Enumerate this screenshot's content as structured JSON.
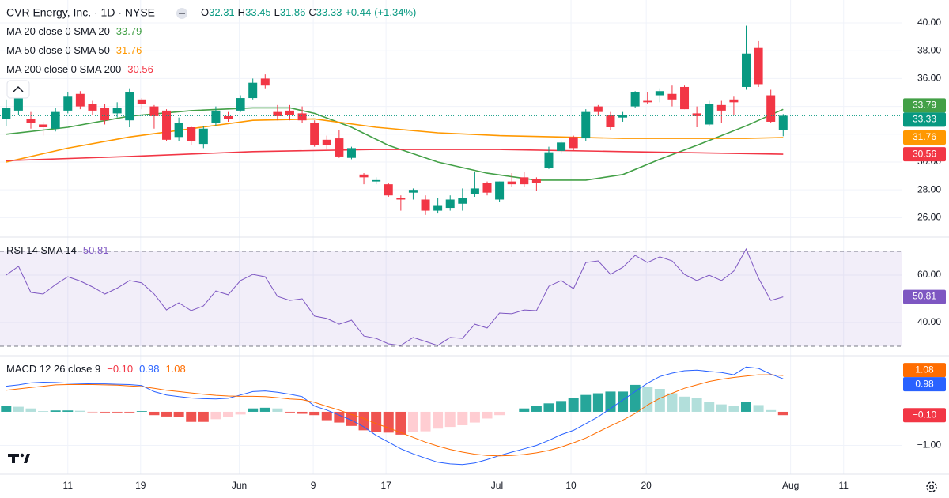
{
  "chart_data": [
    {
      "type": "candlestick",
      "title": "CVR Energy, Inc. · 1D · NYSE",
      "ohlc_labels": [
        "O",
        "H",
        "L",
        "C"
      ],
      "change": {
        "value": 0.44,
        "label": "+0.44"
      },
      "change_pct": {
        "value": 1.34,
        "label": "(+1.34%)"
      },
      "up_color": "#089981",
      "down_color": "#f23645",
      "open": [
        33.1,
        33.7,
        33.1,
        32.7,
        32.4,
        33.7,
        34.9,
        34.2,
        33.9,
        33.5,
        33.0,
        34.5,
        34.0,
        33.7,
        31.8,
        32.5,
        31.3,
        32.8,
        33.3,
        33.7,
        34.6,
        36.0,
        33.6,
        33.7,
        33.5,
        32.8,
        31.6,
        31.7,
        30.3,
        29.1,
        28.6,
        28.4,
        27.4,
        27.8,
        27.3,
        26.5,
        26.7,
        27.0,
        27.7,
        28.5,
        27.3,
        28.6,
        28.9,
        28.8,
        29.6,
        30.8,
        31.8,
        31.7,
        34.0,
        33.4,
        33.2,
        34.0,
        34.4,
        34.8,
        34.9,
        35.4,
        33.5,
        32.7,
        34.1,
        34.5,
        35.4,
        38.2,
        34.8,
        32.31
      ],
      "high": [
        34.5,
        35.0,
        33.6,
        32.9,
        33.9,
        35.0,
        35.1,
        34.4,
        34.2,
        34.3,
        35.3,
        34.6,
        34.1,
        33.8,
        33.2,
        32.6,
        32.6,
        34.0,
        33.6,
        34.8,
        36.0,
        36.3,
        34.1,
        34.1,
        34.0,
        33.0,
        31.9,
        32.3,
        31.1,
        29.2,
        28.9,
        28.5,
        27.6,
        28.1,
        27.6,
        27.4,
        27.6,
        28.1,
        29.3,
        28.6,
        28.6,
        29.2,
        29.3,
        28.9,
        31.1,
        31.5,
        31.9,
        33.8,
        34.1,
        33.6,
        33.6,
        35.1,
        35.0,
        35.3,
        35.5,
        35.5,
        34.0,
        34.4,
        34.4,
        34.7,
        39.8,
        38.7,
        35.2,
        33.45
      ],
      "low": [
        32.6,
        33.4,
        32.4,
        31.9,
        32.2,
        33.5,
        33.8,
        33.4,
        32.7,
        33.2,
        32.5,
        33.8,
        32.4,
        31.5,
        31.5,
        31.2,
        31.0,
        32.6,
        32.9,
        33.6,
        34.5,
        35.3,
        33.0,
        33.0,
        32.8,
        31.1,
        30.9,
        30.3,
        30.2,
        28.4,
        28.4,
        27.5,
        26.5,
        27.3,
        26.2,
        26.3,
        26.5,
        26.5,
        27.5,
        27.6,
        27.1,
        28.2,
        28.2,
        27.9,
        29.5,
        30.6,
        30.8,
        31.5,
        33.3,
        32.3,
        32.9,
        33.9,
        34.2,
        34.3,
        34.0,
        33.8,
        32.5,
        32.6,
        32.8,
        33.4,
        35.2,
        35.4,
        32.8,
        31.86
      ],
      "close": [
        33.9,
        34.6,
        32.8,
        32.5,
        33.6,
        34.7,
        34.0,
        33.7,
        33.0,
        33.9,
        35.0,
        34.2,
        33.3,
        31.6,
        32.8,
        31.5,
        32.4,
        33.7,
        33.1,
        34.6,
        35.7,
        35.5,
        33.3,
        33.4,
        33.0,
        31.2,
        31.2,
        30.4,
        31.0,
        28.9,
        28.7,
        27.6,
        27.3,
        28.0,
        26.5,
        26.9,
        27.3,
        27.4,
        28.1,
        27.8,
        28.6,
        28.4,
        28.4,
        28.5,
        30.7,
        31.4,
        31.0,
        33.6,
        33.6,
        32.5,
        33.4,
        35.0,
        34.3,
        35.1,
        34.5,
        33.8,
        33.3,
        34.2,
        33.7,
        34.3,
        37.8,
        35.6,
        32.9,
        33.33
      ],
      "series": [
        {
          "name": "MA 20 close 0 SMA 20",
          "color": "#43a047",
          "x": [
            0,
            5,
            10,
            15,
            20,
            23,
            25,
            28,
            31,
            35,
            39,
            43,
            47,
            50,
            53,
            56,
            60,
            62,
            63
          ],
          "values": [
            32.0,
            32.5,
            33.3,
            33.7,
            33.9,
            33.9,
            33.5,
            32.5,
            31.2,
            30.0,
            29.2,
            28.7,
            28.7,
            29.1,
            30.2,
            31.2,
            32.6,
            33.4,
            33.79
          ]
        },
        {
          "name": "MA 50 close 0 SMA 50",
          "color": "#ff9800",
          "x": [
            0,
            5,
            10,
            15,
            20,
            25,
            30,
            35,
            40,
            45,
            50,
            55,
            60,
            63
          ],
          "values": [
            30.0,
            31.0,
            31.8,
            32.4,
            33.0,
            33.1,
            32.5,
            32.1,
            31.9,
            31.8,
            31.7,
            31.7,
            31.7,
            31.76
          ]
        },
        {
          "name": "MA 200 close 0 SMA 200",
          "color": "#f23645",
          "x": [
            0,
            10,
            20,
            30,
            40,
            50,
            63
          ],
          "values": [
            30.1,
            30.4,
            30.75,
            30.9,
            30.9,
            30.75,
            30.56
          ]
        }
      ],
      "ylim": [
        24.6,
        41.65
      ],
      "yticks": [
        {
          "value": 26,
          "label": "26.00"
        },
        {
          "value": 28,
          "label": "28.00"
        },
        {
          "value": 30,
          "label": "30.00"
        },
        {
          "value": 32,
          "label": "32.00"
        },
        {
          "value": 34,
          "label": "34.00"
        },
        {
          "value": 36,
          "label": "36.00"
        },
        {
          "value": 38,
          "label": "38.00"
        },
        {
          "value": 40,
          "label": "40.00"
        }
      ]
    },
    {
      "type": "line",
      "name": "RSI 14 SMA 14",
      "color": "#7e57c2",
      "values": [
        60,
        63.7,
        52.7,
        52,
        56,
        59.3,
        57.5,
        55,
        52,
        54.5,
        57.7,
        56.7,
        52,
        45.3,
        48.3,
        45,
        47,
        53.3,
        51.7,
        57.7,
        60.3,
        59.3,
        51,
        49.3,
        50,
        42.7,
        41.7,
        39.3,
        41,
        34.3,
        33.3,
        31,
        30.3,
        33.7,
        32,
        30.3,
        33.7,
        33.3,
        39.3,
        37.7,
        44,
        43.7,
        45.3,
        45,
        55.3,
        57.7,
        54.3,
        65.3,
        66,
        60.3,
        63.3,
        68.3,
        65.3,
        67.7,
        66,
        60.3,
        57.7,
        60,
        57.7,
        61.7,
        71,
        58.7,
        49.3,
        50.81
      ],
      "bands": [
        30,
        70
      ],
      "ylim": [
        26,
        76
      ],
      "yticks": [
        {
          "value": 40,
          "label": "40.00"
        },
        {
          "value": 60,
          "label": "60.00"
        }
      ]
    },
    {
      "type": "macd",
      "name": "MACD 12 26 close 9",
      "histogram": {
        "values": [
          0.17,
          0.15,
          0.1,
          0.02,
          0.04,
          0.04,
          0.03,
          -0.01,
          -0.02,
          -0.02,
          -0.02,
          0.02,
          -0.1,
          -0.14,
          -0.16,
          -0.3,
          -0.3,
          -0.22,
          -0.15,
          -0.08,
          0.1,
          0.12,
          0.1,
          -0.02,
          -0.06,
          -0.1,
          -0.25,
          -0.32,
          -0.42,
          -0.55,
          -0.6,
          -0.62,
          -0.68,
          -0.6,
          -0.58,
          -0.5,
          -0.45,
          -0.4,
          -0.32,
          -0.2,
          -0.1,
          0.0,
          0.1,
          0.17,
          0.25,
          0.32,
          0.4,
          0.5,
          0.55,
          0.6,
          0.6,
          0.8,
          0.75,
          0.68,
          0.55,
          0.45,
          0.4,
          0.3,
          0.22,
          0.18,
          0.3,
          0.2,
          0.05,
          -0.1
        ],
        "last_label": "−0.10",
        "color": "#f23645"
      },
      "series": [
        {
          "color": "#2962ff",
          "values": [
            0.76,
            0.8,
            0.86,
            0.88,
            0.87,
            0.85,
            0.84,
            0.83,
            0.83,
            0.82,
            0.81,
            0.78,
            0.6,
            0.5,
            0.45,
            0.41,
            0.39,
            0.38,
            0.4,
            0.5,
            0.6,
            0.62,
            0.58,
            0.52,
            0.45,
            0.17,
            0.05,
            -0.1,
            -0.25,
            -0.45,
            -0.7,
            -0.9,
            -1.1,
            -1.25,
            -1.38,
            -1.5,
            -1.55,
            -1.57,
            -1.52,
            -1.42,
            -1.3,
            -1.2,
            -1.1,
            -1.0,
            -0.85,
            -0.68,
            -0.55,
            -0.35,
            -0.15,
            0.1,
            0.35,
            0.6,
            0.85,
            1.05,
            1.15,
            1.22,
            1.24,
            1.2,
            1.17,
            1.1,
            1.33,
            1.29,
            1.12,
            0.98
          ]
        },
        {
          "color": "#ff6d00",
          "values": [
            0.64,
            0.68,
            0.72,
            0.76,
            0.8,
            0.81,
            0.81,
            0.81,
            0.8,
            0.79,
            0.77,
            0.75,
            0.7,
            0.64,
            0.6,
            0.56,
            0.52,
            0.49,
            0.47,
            0.46,
            0.46,
            0.45,
            0.42,
            0.38,
            0.36,
            0.28,
            0.16,
            0.05,
            -0.08,
            -0.2,
            -0.35,
            -0.48,
            -0.62,
            -0.76,
            -0.9,
            -1.02,
            -1.12,
            -1.2,
            -1.26,
            -1.3,
            -1.31,
            -1.3,
            -1.27,
            -1.22,
            -1.15,
            -1.05,
            -0.92,
            -0.78,
            -0.6,
            -0.42,
            -0.25,
            -0.05,
            0.2,
            0.4,
            0.55,
            0.7,
            0.8,
            0.9,
            0.97,
            1.02,
            1.06,
            1.1,
            1.1,
            1.08
          ]
        }
      ],
      "ylim": [
        -1.857,
        1.667
      ],
      "yticks": [
        {
          "value": -1,
          "label": "−1.00"
        }
      ],
      "xlim": [
        -0.5,
        72.6
      ],
      "xticks": [
        {
          "value": 5.0,
          "label": "11"
        },
        {
          "value": 10.9,
          "label": "19"
        },
        {
          "value": 18.9,
          "label": "Jun"
        },
        {
          "value": 24.9,
          "label": "9"
        },
        {
          "value": 30.8,
          "label": "17"
        },
        {
          "value": 39.8,
          "label": "Jul"
        },
        {
          "value": 45.8,
          "label": "10"
        },
        {
          "value": 51.9,
          "label": "20"
        },
        {
          "value": 63.6,
          "label": "Aug"
        },
        {
          "value": 67.9,
          "label": "11"
        }
      ]
    }
  ]
}
